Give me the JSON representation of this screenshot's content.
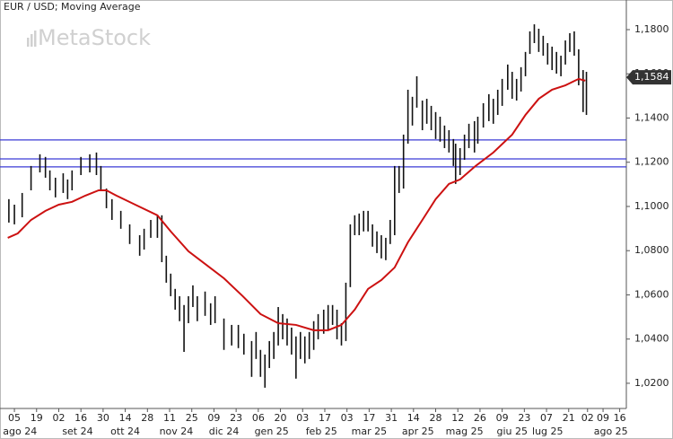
{
  "chart_data": {
    "type": "hlbar",
    "title": "EUR / USD; Moving Average",
    "watermark": "MetaStock",
    "bar_color": "#111111",
    "x": [
      -0.5,
      0,
      0.7,
      1.5,
      2.3,
      2.8,
      3.2,
      3.7,
      4.4,
      4.8,
      5.2,
      6.0,
      6.8,
      7.4,
      7.8,
      8.3,
      8.8,
      9.6,
      10.4,
      11.3,
      11.7,
      12.3,
      12.9,
      13.3,
      13.7,
      14.1,
      14.5,
      14.9,
      15.3,
      15.7,
      16.1,
      16.5,
      17.2,
      17.7,
      18.1,
      18.9,
      19.6,
      20.2,
      20.7,
      21.4,
      21.8,
      22.2,
      22.6,
      23.0,
      23.4,
      23.8,
      24.2,
      24.6,
      25.0,
      25.4,
      25.8,
      26.2,
      26.6,
      27.0,
      27.4,
      27.9,
      28.3,
      28.7,
      29.1,
      29.5,
      29.9,
      30.3,
      30.7,
      31.1,
      31.5,
      31.9,
      32.3,
      32.7,
      33.1,
      33.5,
      33.9,
      34.3,
      34.7,
      35.1,
      35.5,
      35.9,
      36.3,
      36.8,
      37.2,
      37.6,
      38.0,
      38.4,
      38.8,
      39.2,
      39.6,
      39.8,
      40.2,
      40.6,
      41.0,
      41.5,
      41.8,
      42.3,
      42.8,
      43.2,
      43.6,
      44.0,
      44.5,
      44.9,
      45.3,
      45.7,
      46.1,
      46.5,
      46.9,
      47.3,
      47.7,
      48.1,
      48.5,
      48.9,
      49.3,
      49.7,
      50.1,
      50.5,
      50.9,
      51.3,
      51.6
    ],
    "high": [
      1.1033,
      1.1008,
      1.1061,
      1.1183,
      1.1236,
      1.1224,
      1.1163,
      1.113,
      1.115,
      1.1122,
      1.1163,
      1.1224,
      1.1236,
      1.1244,
      1.1183,
      1.1081,
      1.1033,
      1.098,
      1.0919,
      1.087,
      1.0899,
      1.0939,
      1.096,
      1.096,
      1.0777,
      1.0696,
      1.0627,
      1.0594,
      1.0554,
      1.0594,
      1.0643,
      1.0594,
      1.0615,
      1.0562,
      1.0594,
      1.0493,
      1.0464,
      1.0464,
      1.0424,
      1.0391,
      1.0432,
      1.0351,
      1.033,
      1.0391,
      1.0432,
      1.0545,
      1.0513,
      1.0493,
      1.0452,
      1.0412,
      1.0432,
      1.0412,
      1.0432,
      1.0481,
      1.0513,
      1.0533,
      1.0554,
      1.0554,
      1.0533,
      1.0472,
      1.0655,
      1.0919,
      1.096,
      1.0968,
      1.098,
      1.098,
      1.0919,
      1.0887,
      1.087,
      1.0858,
      1.0939,
      1.1183,
      1.1183,
      1.1325,
      1.1528,
      1.1496,
      1.1589,
      1.1479,
      1.1487,
      1.1455,
      1.1427,
      1.1406,
      1.1366,
      1.1345,
      1.1305,
      1.1284,
      1.1264,
      1.1325,
      1.1374,
      1.1386,
      1.1406,
      1.1467,
      1.1508,
      1.1487,
      1.1528,
      1.1577,
      1.1642,
      1.1609,
      1.1577,
      1.163,
      1.1699,
      1.1792,
      1.1824,
      1.1804,
      1.1772,
      1.1739,
      1.1723,
      1.1699,
      1.1682,
      1.1751,
      1.1784,
      1.1792,
      1.1711,
      1.1617,
      1.1609
    ],
    "low": [
      1.0927,
      1.0919,
      1.0951,
      1.1073,
      1.1154,
      1.113,
      1.1073,
      1.1041,
      1.1061,
      1.1033,
      1.1073,
      1.1142,
      1.1154,
      1.1142,
      1.1073,
      1.0992,
      1.0939,
      1.0899,
      1.083,
      1.0777,
      1.0805,
      1.0858,
      1.0858,
      1.0748,
      1.0655,
      1.0594,
      1.0533,
      1.0481,
      1.0342,
      1.0472,
      1.0545,
      1.0481,
      1.0505,
      1.0464,
      1.0472,
      1.0351,
      1.0371,
      1.0359,
      1.033,
      1.0229,
      1.031,
      1.0229,
      1.018,
      1.0269,
      1.031,
      1.0371,
      1.0399,
      1.0371,
      1.033,
      1.0221,
      1.031,
      1.029,
      1.031,
      1.0351,
      1.0399,
      1.0424,
      1.044,
      1.0464,
      1.0399,
      1.0371,
      1.0391,
      1.0635,
      1.087,
      1.087,
      1.0887,
      1.0887,
      1.0818,
      1.0789,
      1.0765,
      1.0757,
      1.083,
      1.087,
      1.1061,
      1.1081,
      1.1284,
      1.1366,
      1.1447,
      1.1345,
      1.1374,
      1.1345,
      1.1305,
      1.1293,
      1.1264,
      1.1244,
      1.1183,
      1.1102,
      1.1142,
      1.1211,
      1.1264,
      1.1244,
      1.1284,
      1.1357,
      1.1386,
      1.1374,
      1.1414,
      1.1455,
      1.1528,
      1.1487,
      1.1479,
      1.152,
      1.1589,
      1.169,
      1.1739,
      1.1699,
      1.1682,
      1.1642,
      1.1617,
      1.1601,
      1.1589,
      1.1642,
      1.1699,
      1.1682,
      1.1548,
      1.1427,
      1.1414
    ],
    "moving_average": {
      "color": "#cc1111",
      "x": [
        -0.6,
        0.3,
        1.5,
        2.8,
        4.0,
        5.2,
        6.4,
        7.6,
        8.3,
        9.2,
        10.9,
        12.9,
        14.1,
        15.7,
        17.3,
        18.9,
        20.6,
        22.2,
        23.8,
        25.4,
        27.0,
        28.3,
        29.5,
        30.7,
        31.9,
        33.1,
        34.3,
        35.5,
        36.8,
        38.0,
        39.2,
        40.2,
        41.6,
        43.2,
        44.9,
        46.1,
        47.3,
        48.5,
        49.7,
        50.9,
        51.5
      ],
      "values": [
        1.0858,
        1.0878,
        1.0939,
        1.098,
        1.1008,
        1.1021,
        1.1049,
        1.1073,
        1.1073,
        1.1049,
        1.1008,
        1.096,
        1.0887,
        1.0797,
        1.0736,
        1.0675,
        1.0594,
        1.0513,
        1.0472,
        1.0464,
        1.044,
        1.044,
        1.0464,
        1.0533,
        1.0627,
        1.0667,
        1.0724,
        1.0838,
        1.0939,
        1.1033,
        1.1102,
        1.1122,
        1.1183,
        1.1244,
        1.1325,
        1.1414,
        1.1487,
        1.1528,
        1.1548,
        1.1577,
        1.1569
      ]
    },
    "hlines": {
      "color": "#3b3bd6",
      "values": [
        1.1301,
        1.1215,
        1.1179
      ]
    },
    "last_price": {
      "value": 1.1584,
      "label": "1,1584"
    },
    "xlim": [
      -1.3,
      55.2
    ],
    "ylim": [
      1.0086,
      1.1934
    ],
    "yticks": [
      {
        "value": 1.02,
        "label": "1,0200"
      },
      {
        "value": 1.04,
        "label": "1,0400"
      },
      {
        "value": 1.06,
        "label": "1,0600"
      },
      {
        "value": 1.08,
        "label": "1,0800"
      },
      {
        "value": 1.1,
        "label": "1,1000"
      },
      {
        "value": 1.12,
        "label": "1,1200"
      },
      {
        "value": 1.14,
        "label": "1,1400"
      },
      {
        "value": 1.16,
        "label": "1,1600"
      },
      {
        "value": 1.18,
        "label": "1,1800"
      }
    ],
    "xticks": [
      {
        "value": 0,
        "label": "05"
      },
      {
        "value": 2,
        "label": "19"
      },
      {
        "value": 4,
        "label": "02"
      },
      {
        "value": 6,
        "label": "16"
      },
      {
        "value": 8,
        "label": "30"
      },
      {
        "value": 10,
        "label": "14"
      },
      {
        "value": 12,
        "label": "28"
      },
      {
        "value": 14,
        "label": "11"
      },
      {
        "value": 16,
        "label": "25"
      },
      {
        "value": 18,
        "label": "09"
      },
      {
        "value": 20,
        "label": "23"
      },
      {
        "value": 22,
        "label": "06"
      },
      {
        "value": 24,
        "label": "20"
      },
      {
        "value": 26,
        "label": "03"
      },
      {
        "value": 28,
        "label": "17"
      },
      {
        "value": 30,
        "label": "03"
      },
      {
        "value": 32,
        "label": "17"
      },
      {
        "value": 34,
        "label": "31"
      },
      {
        "value": 36,
        "label": "14"
      },
      {
        "value": 38,
        "label": "28"
      },
      {
        "value": 40,
        "label": "12"
      },
      {
        "value": 42,
        "label": "26"
      },
      {
        "value": 44,
        "label": "09"
      },
      {
        "value": 46,
        "label": "23"
      },
      {
        "value": 48,
        "label": "07"
      },
      {
        "value": 50,
        "label": "21"
      },
      {
        "value": 51.7,
        "label": "02"
      },
      {
        "value": 53.1,
        "label": "09"
      },
      {
        "value": 54.6,
        "label": "16"
      }
    ],
    "month_ticks": [
      {
        "value": 0.5,
        "label": "ago 24"
      },
      {
        "value": 5.7,
        "label": "set 24"
      },
      {
        "value": 10,
        "label": "ott 24"
      },
      {
        "value": 14.6,
        "label": "nov 24"
      },
      {
        "value": 18.9,
        "label": "dic 24"
      },
      {
        "value": 23.2,
        "label": "gen 25"
      },
      {
        "value": 27.7,
        "label": "feb 25"
      },
      {
        "value": 32,
        "label": "mar 25"
      },
      {
        "value": 36.4,
        "label": "apr 25"
      },
      {
        "value": 40.6,
        "label": "mag 25"
      },
      {
        "value": 44.9,
        "label": "giu 25"
      },
      {
        "value": 48.1,
        "label": "lug 25"
      },
      {
        "value": 53.8,
        "label": "ago 25"
      }
    ]
  }
}
